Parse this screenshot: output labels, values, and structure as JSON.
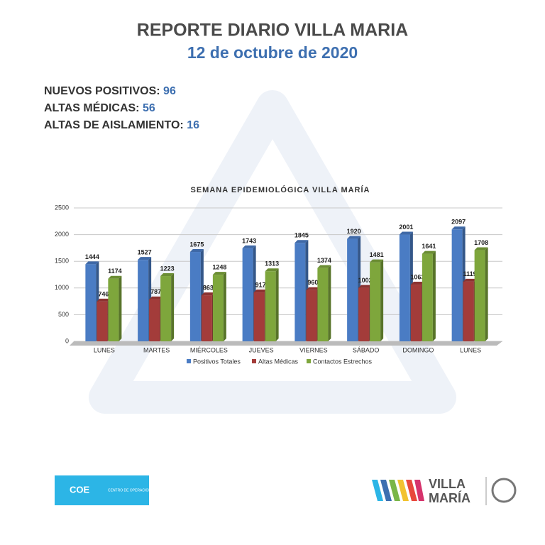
{
  "header": {
    "title": "REPORTE DIARIO VILLA MARIA",
    "date": "12 de octubre de 2020"
  },
  "stats": [
    {
      "label": "NUEVOS POSITIVOS:",
      "value": 96
    },
    {
      "label": "ALTAS MÉDICAS:",
      "value": 56
    },
    {
      "label": "ALTAS DE AISLAMIENTO:",
      "value": 16
    }
  ],
  "chart_data": {
    "type": "bar",
    "title": "SEMANA EPIDEMIOLÓGICA VILLA MARÍA",
    "categories": [
      "LUNES",
      "MARTES",
      "MIÉRCOLES",
      "JUEVES",
      "VIERNES",
      "SÁBADO",
      "DOMINGO",
      "LUNES"
    ],
    "series": [
      {
        "name": "Positivos Totales",
        "color": "#4a7cc4",
        "values": [
          1444,
          1527,
          1675,
          1743,
          1845,
          1920,
          2001,
          2097
        ]
      },
      {
        "name": "Altas Médicas",
        "color": "#a33c3a",
        "values": [
          746,
          787,
          863,
          917,
          960,
          1002,
          1063,
          1119
        ]
      },
      {
        "name": "Contactos Estrechos",
        "color": "#7ea63c",
        "values": [
          1174,
          1223,
          1248,
          1313,
          1374,
          1481,
          1641,
          1708
        ]
      }
    ],
    "ylim": [
      0,
      2500
    ],
    "yticks": [
      0,
      500,
      1000,
      1500,
      2000,
      2500
    ],
    "grid": true,
    "legend": "bottom"
  },
  "footer": {
    "coe": "COE",
    "coe_name": "CENTRO DE OPERACIONES DE EMERGENCIAS",
    "city_1": "VILLA",
    "city_2": "MARÍA"
  }
}
